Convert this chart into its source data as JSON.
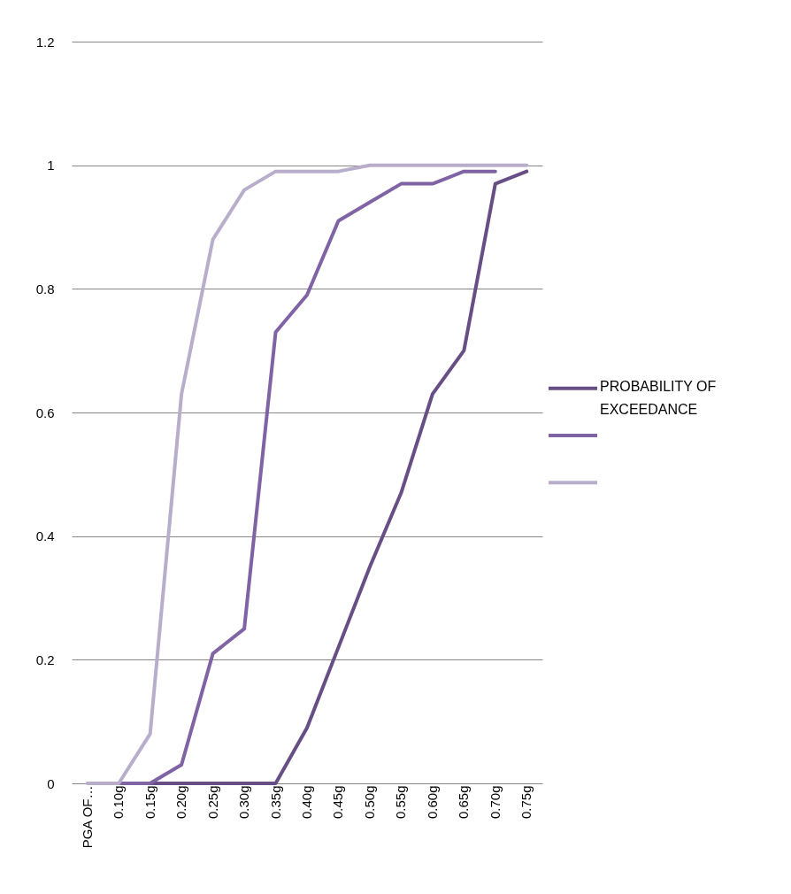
{
  "chart_data": {
    "type": "line",
    "categories": [
      "PGA OF…",
      "0.10g",
      "0.15g",
      "0.20g",
      "0.25g",
      "0.30g",
      "0.35g",
      "0.40g",
      "0.45g",
      "0.50g",
      "0.55g",
      "0.60g",
      "0.65g",
      "0.70g",
      "0.75g"
    ],
    "series": [
      {
        "name": "PROBABILITY OF EXCEEDANCE",
        "color": "#674f86",
        "values": [
          null,
          null,
          0,
          0,
          0,
          0,
          0,
          0.09,
          0.22,
          0.35,
          0.47,
          0.63,
          0.7,
          0.97,
          0.99
        ]
      },
      {
        "color": "#7f63a4",
        "values": [
          null,
          0,
          0,
          0.03,
          0.21,
          0.25,
          0.73,
          0.79,
          0.91,
          0.94,
          0.97,
          0.97,
          0.99,
          0.99,
          null
        ]
      },
      {
        "color": "#b8aecb",
        "values": [
          0,
          0,
          0.08,
          0.63,
          0.88,
          0.96,
          0.99,
          0.99,
          0.99,
          1,
          1,
          1,
          1,
          1,
          1
        ]
      }
    ],
    "ylim": [
      0,
      1.2
    ],
    "yticks": [
      0,
      0.2,
      0.4,
      0.6,
      0.8,
      1,
      1.2
    ],
    "grid": "y",
    "legend": "right",
    "marker": "none",
    "line_style": "solid"
  }
}
